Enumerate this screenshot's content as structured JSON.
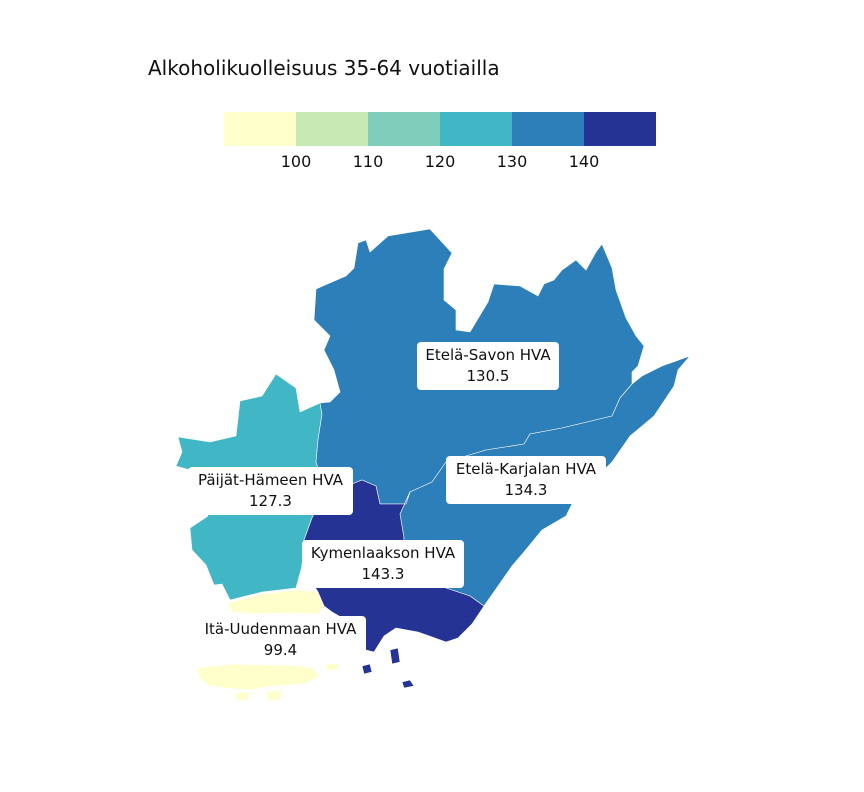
{
  "title": "Alkoholikuolleisuus 35-64 vuotiailla",
  "legend": {
    "colors": [
      "#ffffcc",
      "#c7e9b4",
      "#7fcdbb",
      "#41b6c4",
      "#2c7fb8",
      "#253494"
    ],
    "ticks": [
      "100",
      "110",
      "120",
      "130",
      "140"
    ]
  },
  "regions": [
    {
      "name": "Etelä-Savon HVA",
      "value": "130.5",
      "color": "#2c7fb8"
    },
    {
      "name": "Etelä-Karjalan HVA",
      "value": "134.3",
      "color": "#2c7fb8"
    },
    {
      "name": "Päijät-Hämeen HVA",
      "value": "127.3",
      "color": "#41b6c4"
    },
    {
      "name": "Kymenlaakson HVA",
      "value": "143.3",
      "color": "#253494"
    },
    {
      "name": "Itä-Uudenmaan HVA",
      "value": "99.4",
      "color": "#ffffcc"
    }
  ]
}
